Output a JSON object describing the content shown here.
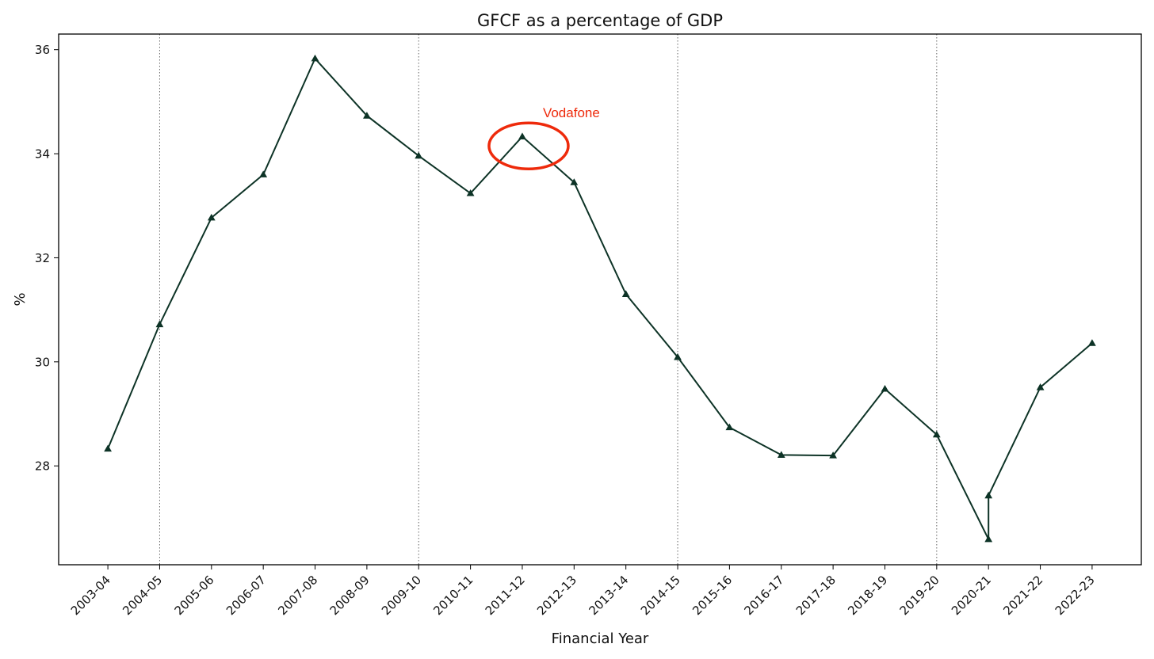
{
  "chart_data": {
    "type": "line",
    "title": "GFCF as a percentage of GDP",
    "xlabel": "Financial Year",
    "ylabel": "%",
    "categories": [
      "2003-04",
      "2004-05",
      "2005-06",
      "2006-07",
      "2007-08",
      "2008-09",
      "2009-10",
      "2010-11",
      "2011-12",
      "2012-13",
      "2013-14",
      "2014-15",
      "2015-16",
      "2016-17",
      "2017-18",
      "2018-19",
      "2019-20",
      "2020-21",
      "2021-22",
      "2022-23"
    ],
    "points": [
      {
        "x": 0,
        "y": 28.33
      },
      {
        "x": 1,
        "y": 30.72
      },
      {
        "x": 2,
        "y": 32.77
      },
      {
        "x": 3,
        "y": 33.6
      },
      {
        "x": 4,
        "y": 35.83
      },
      {
        "x": 5,
        "y": 34.73
      },
      {
        "x": 6,
        "y": 33.96
      },
      {
        "x": 7,
        "y": 33.24
      },
      {
        "x": 8,
        "y": 34.33
      },
      {
        "x": 9,
        "y": 33.45
      },
      {
        "x": 10,
        "y": 31.3
      },
      {
        "x": 11,
        "y": 30.09
      },
      {
        "x": 12,
        "y": 28.74
      },
      {
        "x": 13,
        "y": 28.21
      },
      {
        "x": 14,
        "y": 28.2
      },
      {
        "x": 15,
        "y": 29.48
      },
      {
        "x": 16,
        "y": 28.6
      },
      {
        "x": 17,
        "y": 26.59
      },
      {
        "x": 17,
        "y": 27.43
      },
      {
        "x": 18,
        "y": 29.51
      },
      {
        "x": 19,
        "y": 30.36
      }
    ],
    "yticks": [
      28,
      30,
      32,
      34,
      36
    ],
    "ylim": [
      26.1,
      36.3
    ],
    "xlim": [
      -0.95,
      19.95
    ],
    "vlines": [
      1,
      6,
      11,
      16
    ],
    "annotation": {
      "text": "Vodafone",
      "x": 8,
      "y": 34.15,
      "color": "#ee2a0b"
    },
    "line_color": "#0d3326",
    "marker": "triangle",
    "grid": false,
    "legend": "none"
  }
}
